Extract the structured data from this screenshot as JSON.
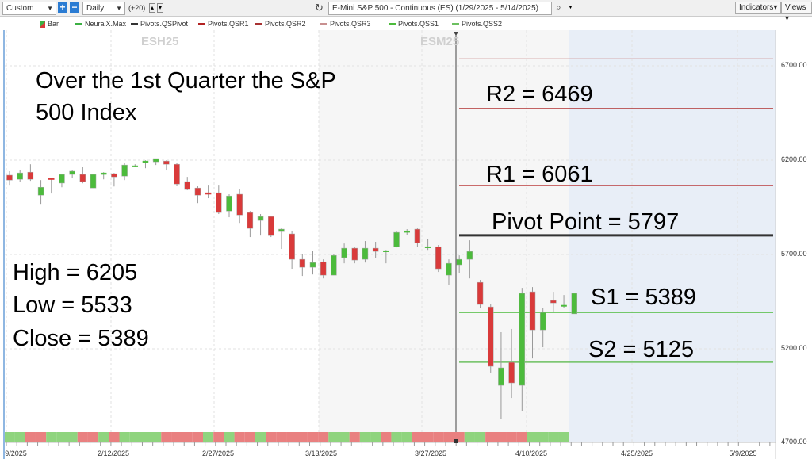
{
  "toolbar": {
    "range": "Custom",
    "plus": "+",
    "minus": "−",
    "interval": "Daily",
    "offset": "(+20)",
    "title": "E-Mini S&P 500 - Continuous (ES) (1/29/2025 - 5/14/2025)",
    "indicators": "Indicators",
    "views": "Views",
    "icons": [
      "refresh-icon",
      "search-icon",
      "chevron-down-icon"
    ]
  },
  "legend": [
    {
      "label": "Bar",
      "color": "#d93a3a"
    },
    {
      "label": "NeuralX.Max",
      "color": "#3cb043"
    },
    {
      "label": "Pivots.QSPivot",
      "color": "#333333"
    },
    {
      "label": "Pivots.QSR1",
      "color": "#b22222"
    },
    {
      "label": "Pivots.QSR2",
      "color": "#a83232"
    },
    {
      "label": "Pivots.QSR3",
      "color": "#c89090"
    },
    {
      "label": "Pivots.QSS1",
      "color": "#4cbb3c"
    },
    {
      "label": "Pivots.QSS2",
      "color": "#6cc060"
    }
  ],
  "contracts": [
    "ESH25",
    "ESM25"
  ],
  "annotations": {
    "headline1": "Over the 1st Quarter the S&P",
    "headline2": "500 Index",
    "high": "High = 6205",
    "low": "Low = 5533",
    "close": "Close = 5389",
    "r2": "R2 = 6469",
    "r1": "R1 = 6061",
    "pivot": "Pivot Point = 5797",
    "s1": "S1 = 5389",
    "s2": "S2 = 5125"
  },
  "colors": {
    "up": "#4cbb3c",
    "down": "#d93a3a",
    "neural_up": "#8fd47e",
    "neural_down": "#e98080",
    "future_bg": "#e8eef7",
    "contract_bg": "#f6f6f6"
  },
  "chart_data": {
    "type": "candlestick",
    "y_ticks": [
      "6700.00",
      "6200.00",
      "5700.00",
      "5200.00",
      "4700.00"
    ],
    "ylim": [
      4700,
      6800
    ],
    "x_ticks": [
      "9/2025",
      "2/12/2025",
      "2/27/2025",
      "3/13/2025",
      "3/27/2025",
      "4/10/2025",
      "4/25/2025",
      "5/9/2025"
    ],
    "pivots": [
      {
        "name": "Pivots.QSR3",
        "value": 6733,
        "color": "#d09a9a"
      },
      {
        "name": "Pivots.QSR2",
        "value": 6469,
        "color": "#b03030"
      },
      {
        "name": "Pivots.QSR1",
        "value": 6061,
        "color": "#b01818"
      },
      {
        "name": "Pivots.QSPivot",
        "value": 5797,
        "color": "#333333"
      },
      {
        "name": "Pivots.QSS1",
        "value": 5389,
        "color": "#4cbb3c"
      },
      {
        "name": "Pivots.QSS2",
        "value": 5125,
        "color": "#6cc060"
      }
    ],
    "ohlc": [
      [
        6116,
        6137,
        6065,
        6090
      ],
      [
        6094,
        6145,
        6082,
        6128
      ],
      [
        6132,
        6174,
        6086,
        6094
      ],
      [
        6010,
        6090,
        5964,
        6052
      ],
      [
        6099,
        6099,
        6019,
        6095
      ],
      [
        6074,
        6120,
        6052,
        6120
      ],
      [
        6120,
        6145,
        6099,
        6137
      ],
      [
        6120,
        6158,
        6073,
        6082
      ],
      [
        6048,
        6124,
        6048,
        6120
      ],
      [
        6120,
        6132,
        6094,
        6128
      ],
      [
        6124,
        6128,
        6056,
        6107
      ],
      [
        6111,
        6183,
        6090,
        6170
      ],
      [
        6166,
        6174,
        6158,
        6166
      ],
      [
        6183,
        6195,
        6153,
        6191
      ],
      [
        6187,
        6204,
        6170,
        6204
      ],
      [
        6191,
        6195,
        6141,
        6174
      ],
      [
        6174,
        6183,
        6061,
        6069
      ],
      [
        6082,
        6107,
        6036,
        6040
      ],
      [
        6048,
        6057,
        5968,
        6010
      ],
      [
        6023,
        6065,
        5994,
        6015
      ],
      [
        6023,
        6065,
        5910,
        5918
      ],
      [
        5926,
        6015,
        5893,
        6006
      ],
      [
        6015,
        6044,
        5863,
        5905
      ],
      [
        5918,
        5926,
        5788,
        5834
      ],
      [
        5876,
        5910,
        5796,
        5897
      ],
      [
        5897,
        5901,
        5788,
        5796
      ],
      [
        5817,
        5838,
        5725,
        5830
      ],
      [
        5805,
        5822,
        5620,
        5670
      ],
      [
        5670,
        5700,
        5582,
        5628
      ],
      [
        5628,
        5716,
        5590,
        5653
      ],
      [
        5657,
        5670,
        5569,
        5586
      ],
      [
        5586,
        5695,
        5586,
        5691
      ],
      [
        5679,
        5754,
        5649,
        5729
      ],
      [
        5729,
        5737,
        5649,
        5666
      ],
      [
        5670,
        5767,
        5653,
        5729
      ],
      [
        5729,
        5763,
        5679,
        5712
      ],
      [
        5716,
        5720,
        5649,
        5716
      ],
      [
        5737,
        5821,
        5733,
        5813
      ],
      [
        5813,
        5830,
        5800,
        5821
      ],
      [
        5830,
        5834,
        5737,
        5758
      ],
      [
        5737,
        5779,
        5720,
        5737
      ],
      [
        5737,
        5746,
        5603,
        5620
      ],
      [
        5586,
        5670,
        5532,
        5649
      ],
      [
        5641,
        5691,
        5599,
        5670
      ],
      [
        5670,
        5771,
        5569,
        5712
      ],
      [
        5548,
        5561,
        5414,
        5431
      ],
      [
        5418,
        5431,
        5070,
        5103
      ],
      [
        5002,
        5284,
        4826,
        5095
      ],
      [
        5124,
        5301,
        4935,
        5015
      ],
      [
        5002,
        5519,
        4868,
        5490
      ],
      [
        5498,
        5523,
        5145,
        5296
      ],
      [
        5296,
        5414,
        5204,
        5389
      ],
      [
        5452,
        5498,
        5393,
        5439
      ],
      [
        5427,
        5481,
        5414,
        5427
      ],
      [
        5381,
        5490,
        5381,
        5490
      ]
    ],
    "neuralx": "ggrrgggrrgrggggrrrrgrgrrgrrrrrrggrggrggrrrrrggrrrrggggg"
  }
}
